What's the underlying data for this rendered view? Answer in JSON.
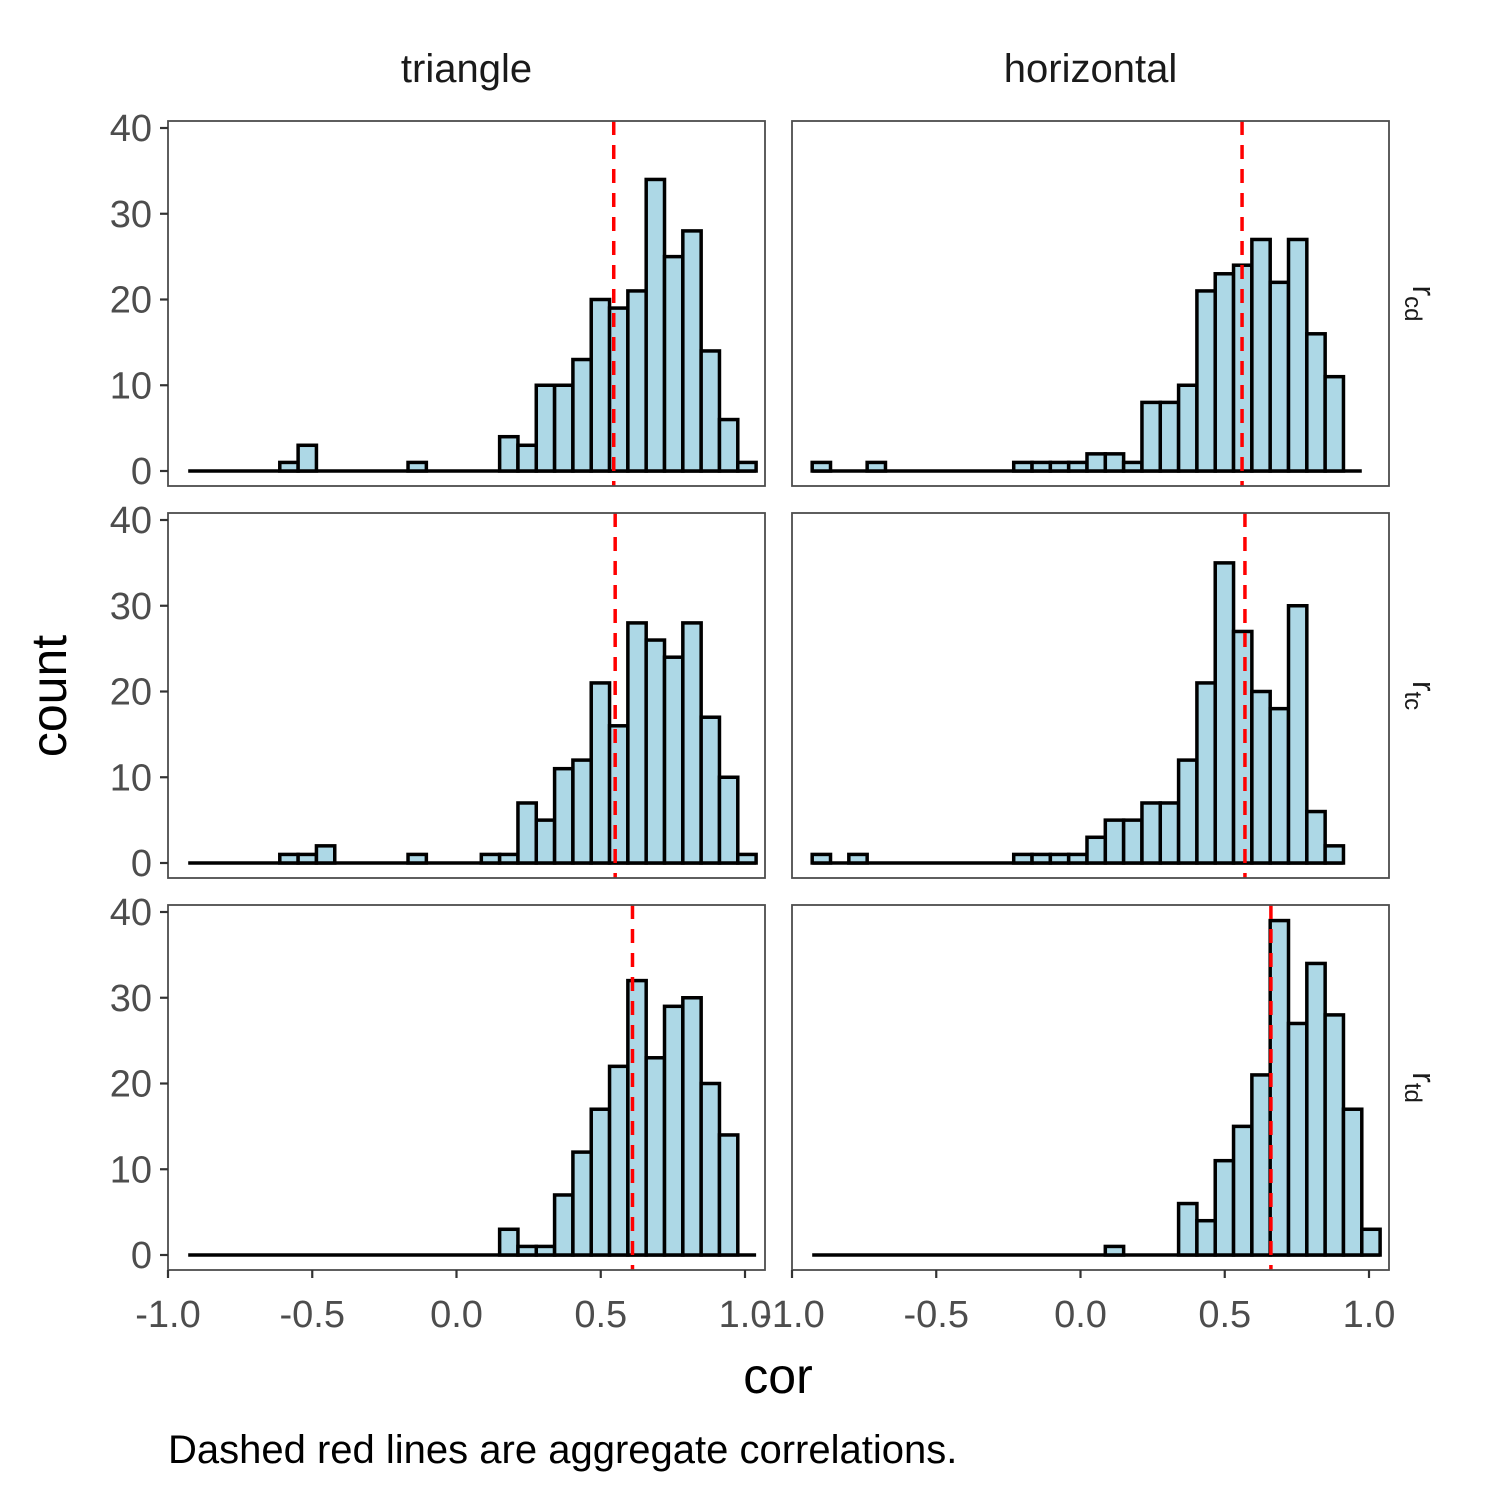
{
  "chart_data": {
    "type": "bar",
    "subtype": "faceted histogram",
    "xlabel": "cor",
    "ylabel": "count",
    "caption": "Dashed red lines are aggregate correlations.",
    "xlim": [
      -1.0,
      1.0
    ],
    "ylim": [
      0,
      40
    ],
    "x_ticks": [
      "-1.0",
      "-0.5",
      "0.0",
      "0.5",
      "1.0"
    ],
    "y_ticks": [
      "0",
      "10",
      "20",
      "30",
      "40"
    ],
    "bin_start": -0.93,
    "bin_width": 0.0635,
    "column_facets": [
      "triangle",
      "horizontal"
    ],
    "row_facets": [
      {
        "base": "r",
        "sub": "cd"
      },
      {
        "base": "r",
        "sub": "tc"
      },
      {
        "base": "r",
        "sub": "td"
      }
    ],
    "colors": {
      "bar_fill": "#add8e6",
      "bar_outline": "#000000",
      "aggregate_line": "#ff0000"
    },
    "grid": false,
    "panels": [
      {
        "row": 0,
        "col": 0,
        "aggregate": 0.545,
        "counts": [
          0,
          0,
          0,
          0,
          0,
          1,
          3,
          0,
          0,
          0,
          0,
          0,
          1,
          0,
          0,
          0,
          0,
          4,
          3,
          10,
          10,
          13,
          20,
          19,
          21,
          34,
          25,
          28,
          14,
          6,
          1
        ]
      },
      {
        "row": 0,
        "col": 1,
        "aggregate": 0.56,
        "counts": [
          1,
          0,
          0,
          1,
          0,
          0,
          0,
          0,
          0,
          0,
          0,
          1,
          1,
          1,
          1,
          2,
          2,
          1,
          8,
          8,
          10,
          21,
          23,
          24,
          27,
          22,
          27,
          16,
          11,
          0
        ]
      },
      {
        "row": 1,
        "col": 0,
        "aggregate": 0.55,
        "counts": [
          0,
          0,
          0,
          0,
          0,
          1,
          1,
          2,
          0,
          0,
          0,
          0,
          1,
          0,
          0,
          0,
          1,
          1,
          7,
          5,
          11,
          12,
          21,
          16,
          28,
          26,
          24,
          28,
          17,
          10,
          1
        ]
      },
      {
        "row": 1,
        "col": 1,
        "aggregate": 0.57,
        "counts": [
          1,
          0,
          1,
          0,
          0,
          0,
          0,
          0,
          0,
          0,
          0,
          1,
          1,
          1,
          1,
          3,
          5,
          5,
          7,
          7,
          12,
          21,
          35,
          27,
          20,
          18,
          30,
          6,
          2
        ]
      },
      {
        "row": 2,
        "col": 0,
        "aggregate": 0.61,
        "counts": [
          0,
          0,
          0,
          0,
          0,
          0,
          0,
          0,
          0,
          0,
          0,
          0,
          0,
          0,
          0,
          0,
          0,
          3,
          1,
          1,
          7,
          12,
          17,
          22,
          32,
          23,
          29,
          30,
          20,
          14,
          0
        ]
      },
      {
        "row": 2,
        "col": 1,
        "aggregate": 0.66,
        "counts": [
          0,
          0,
          0,
          0,
          0,
          0,
          0,
          0,
          0,
          0,
          0,
          0,
          0,
          0,
          0,
          0,
          1,
          0,
          0,
          0,
          6,
          4,
          11,
          15,
          21,
          39,
          27,
          34,
          28,
          17,
          3
        ]
      }
    ]
  }
}
